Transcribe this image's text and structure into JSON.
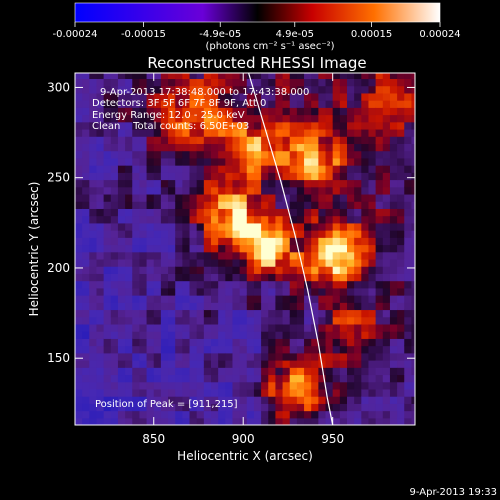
{
  "chart_data": {
    "type": "heatmap",
    "title": "Reconstructed RHESSI Image",
    "xlabel": "Heliocentric X (arcsec)",
    "ylabel": "Heliocentric Y (arcsec)",
    "xlim": [
      806,
      996
    ],
    "ylim": [
      113,
      308
    ],
    "x_ticks": [
      850,
      900,
      950
    ],
    "y_ticks": [
      150,
      200,
      250,
      300
    ],
    "colorbar": {
      "ticks": [
        "-0.00024",
        "-0.00015",
        "-4.9e-05",
        "4.9e-05",
        "0.00015",
        "0.00024"
      ],
      "values": [
        -0.00024,
        -0.00015,
        -4.9e-05,
        4.9e-05,
        0.00015,
        0.00024
      ],
      "units": "(photons cm⁻² s⁻¹ asec⁻²)"
    },
    "info_lines": [
      "9-Apr-2013 17:38:48.000 to 17:43:38.000",
      "Detectors: 3F 5F 6F 7F 8F 9F, Att 0",
      "Energy Range: 12.0 - 25.0 keV",
      "Clean    Total counts: 6.50E+03"
    ],
    "peak_label": "Position of Peak = [911,215]",
    "peak": [
      911,
      215
    ],
    "limb_arc": [
      [
        903,
        308
      ],
      [
        912,
        278
      ],
      [
        921,
        248
      ],
      [
        929,
        218
      ],
      [
        936,
        188
      ],
      [
        942,
        158
      ],
      [
        947,
        128
      ],
      [
        950,
        113
      ]
    ],
    "bright_sources": [
      {
        "x": 913,
        "y": 213,
        "intensity": 1.0,
        "spread": 10
      },
      {
        "x": 950,
        "y": 207,
        "intensity": 0.95,
        "spread": 12
      },
      {
        "x": 930,
        "y": 133,
        "intensity": 0.9,
        "spread": 12
      },
      {
        "x": 892,
        "y": 228,
        "intensity": 0.75,
        "spread": 13
      },
      {
        "x": 940,
        "y": 258,
        "intensity": 0.65,
        "spread": 12
      },
      {
        "x": 905,
        "y": 268,
        "intensity": 0.55,
        "spread": 14
      },
      {
        "x": 870,
        "y": 285,
        "intensity": 0.55,
        "spread": 14
      },
      {
        "x": 960,
        "y": 165,
        "intensity": 0.5,
        "spread": 12
      },
      {
        "x": 980,
        "y": 290,
        "intensity": 0.4,
        "spread": 10
      }
    ],
    "colors": {
      "background": "#000000",
      "text": "#ffffff"
    }
  },
  "footer": {
    "timestamp": "9-Apr-2013 19:33"
  }
}
